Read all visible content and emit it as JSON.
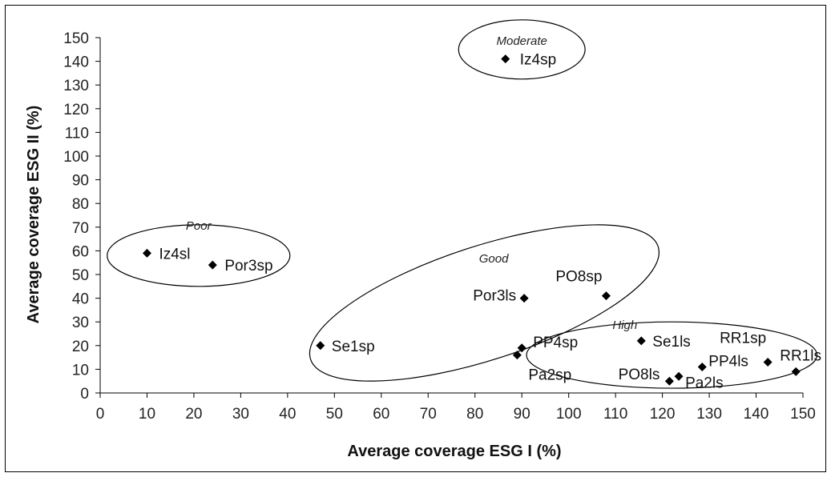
{
  "chart_data": {
    "type": "scatter",
    "xlabel": "Average coverage ESG I (%)",
    "ylabel": "Average coverage ESG II (%)",
    "xlim": [
      0,
      150
    ],
    "ylim": [
      0,
      150
    ],
    "xticks": [
      0,
      10,
      20,
      30,
      40,
      50,
      60,
      70,
      80,
      90,
      100,
      110,
      120,
      130,
      140,
      150
    ],
    "yticks": [
      0,
      10,
      20,
      30,
      40,
      50,
      60,
      70,
      80,
      90,
      100,
      110,
      120,
      130,
      140,
      150
    ],
    "grid": false,
    "points": [
      {
        "label": "Iz4sp",
        "x": 86.5,
        "y": 141
      },
      {
        "label": "Iz4sl",
        "x": 10,
        "y": 59
      },
      {
        "label": "Por3sp",
        "x": 24,
        "y": 54
      },
      {
        "label": "Se1sp",
        "x": 47,
        "y": 20
      },
      {
        "label": "Por3ls",
        "x": 90.5,
        "y": 40
      },
      {
        "label": "PO8sp",
        "x": 108,
        "y": 41
      },
      {
        "label": "PP4sp",
        "x": 90,
        "y": 19
      },
      {
        "label": "Pa2sp",
        "x": 89,
        "y": 16
      },
      {
        "label": "Se1ls",
        "x": 115.5,
        "y": 22
      },
      {
        "label": "PO8ls",
        "x": 121.5,
        "y": 5
      },
      {
        "label": "Pa2ls",
        "x": 123.5,
        "y": 7
      },
      {
        "label": "PP4ls",
        "x": 128.5,
        "y": 11
      },
      {
        "label": "RR1sp",
        "x": 142.5,
        "y": 13
      },
      {
        "label": "RR1ls",
        "x": 148.5,
        "y": 9
      }
    ],
    "groups": [
      {
        "label": "Moderate",
        "cx": 90,
        "cy": 145,
        "rx": 13.5,
        "ry": 12.5,
        "angle": 0,
        "lx": 90,
        "ly": 147
      },
      {
        "label": "Poor",
        "cx": 21,
        "cy": 58,
        "rx": 19.5,
        "ry": 13,
        "angle": 0,
        "lx": 21,
        "ly": 69
      },
      {
        "label": "Good",
        "cx": 82,
        "cy": 38,
        "rx": 39,
        "ry": 24,
        "angle": 18,
        "lx": 84,
        "ly": 55
      },
      {
        "label": "High",
        "cx": 122,
        "cy": 16,
        "rx": 31,
        "ry": 14,
        "angle": 0,
        "lx": 112,
        "ly": 27
      }
    ]
  }
}
